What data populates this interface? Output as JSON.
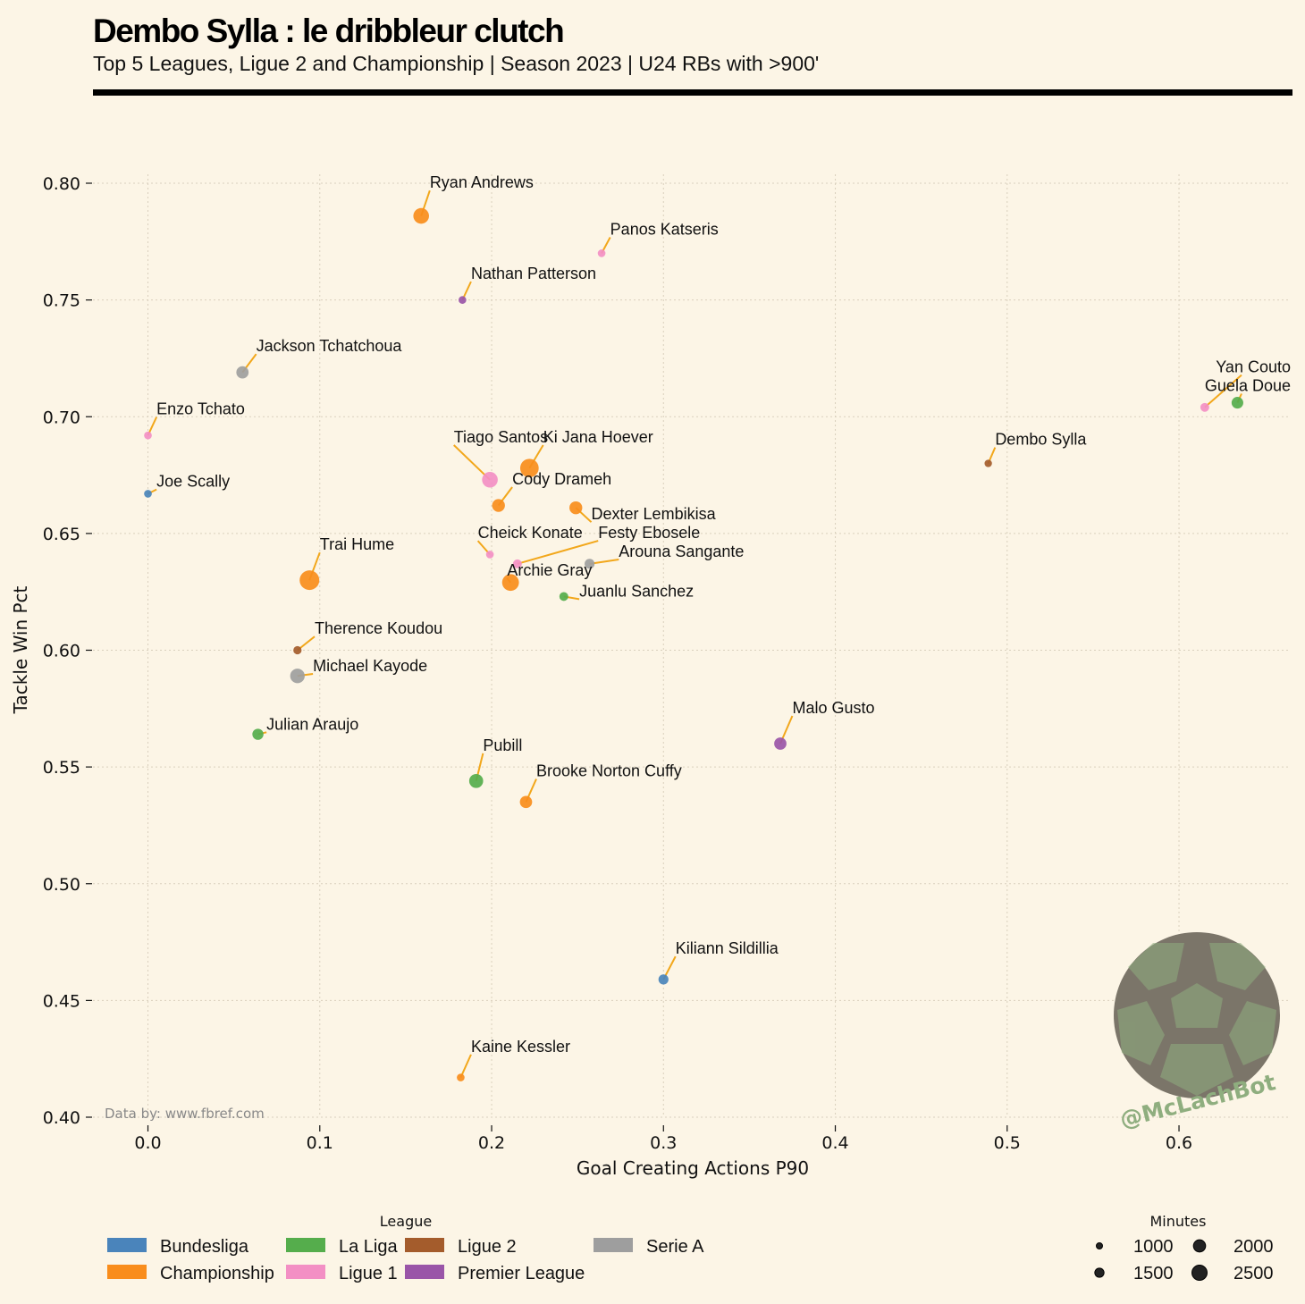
{
  "header": {
    "title": "Dembo Sylla : le dribbleur clutch",
    "subtitle": "Top 5 Leagues, Ligue 2 and Championship | Season 2023 | U24 RBs with >900'"
  },
  "footer": {
    "credit": "Data by: www.fbref.com",
    "brand": "@McLachBot"
  },
  "colors": {
    "background": "#fcf5e6",
    "leader_line": "#f2a71b",
    "Bundesliga": "#4a84bb",
    "Championship": "#f98d1c",
    "La Liga": "#55ad4c",
    "Ligue 1": "#f38fc4",
    "Ligue 2": "#a45c2c",
    "Premier League": "#9a55a8",
    "Serie A": "#9e9e9e"
  },
  "chart_data": {
    "type": "scatter",
    "xlabel": "Goal Creating Actions P90",
    "ylabel": "Tackle Win Pct",
    "xlim": [
      -0.032,
      0.665
    ],
    "ylim": [
      0.4,
      0.8
    ],
    "xticks": [
      0.0,
      0.1,
      0.2,
      0.3,
      0.4,
      0.5,
      0.6
    ],
    "xtick_labels": [
      "0.0",
      "0.1",
      "0.2",
      "0.3",
      "0.4",
      "0.5",
      "0.6"
    ],
    "yticks": [
      0.4,
      0.45,
      0.5,
      0.55,
      0.6,
      0.65,
      0.7,
      0.75,
      0.8
    ],
    "ytick_labels": [
      "0.40",
      "0.45",
      "0.50",
      "0.55",
      "0.60",
      "0.65",
      "0.70",
      "0.75",
      "0.80"
    ],
    "grid": true,
    "points": [
      {
        "name": "Ryan Andrews",
        "x": 0.159,
        "y": 0.786,
        "league": "Championship",
        "minutes": 2400,
        "lx": 0.164,
        "ly": 0.798,
        "anchor": "start"
      },
      {
        "name": "Panos Katseris",
        "x": 0.264,
        "y": 0.77,
        "league": "Ligue 1",
        "minutes": 1000,
        "lx": 0.269,
        "ly": 0.778,
        "anchor": "start"
      },
      {
        "name": "Nathan Patterson",
        "x": 0.183,
        "y": 0.75,
        "league": "Premier League",
        "minutes": 1000,
        "lx": 0.188,
        "ly": 0.759,
        "anchor": "start"
      },
      {
        "name": "Jackson Tchatchoua",
        "x": 0.055,
        "y": 0.719,
        "league": "Serie A",
        "minutes": 1800,
        "lx": 0.063,
        "ly": 0.728,
        "anchor": "start"
      },
      {
        "name": "Yan Couto",
        "x": 0.615,
        "y": 0.704,
        "league": "Ligue 1",
        "minutes": 1200,
        "lx": 0.665,
        "ly": 0.719,
        "anchor": "end"
      },
      {
        "name": "Guela Doue",
        "x": 0.634,
        "y": 0.706,
        "league": "La Liga",
        "minutes": 1700,
        "lx": 0.665,
        "ly": 0.711,
        "anchor": "end"
      },
      {
        "name": "Enzo Tchato",
        "x": 0.0,
        "y": 0.692,
        "league": "Ligue 1",
        "minutes": 1000,
        "lx": 0.005,
        "ly": 0.701,
        "anchor": "start"
      },
      {
        "name": "Dembo Sylla",
        "x": 0.489,
        "y": 0.68,
        "league": "Ligue 2",
        "minutes": 950,
        "lx": 0.493,
        "ly": 0.688,
        "anchor": "start"
      },
      {
        "name": "Tiago Santos",
        "x": 0.199,
        "y": 0.673,
        "league": "Ligue 1",
        "minutes": 2400,
        "lx": 0.178,
        "ly": 0.689,
        "anchor": "start"
      },
      {
        "name": "Ki Jana Hoever",
        "x": 0.222,
        "y": 0.678,
        "league": "Championship",
        "minutes": 2900,
        "lx": 0.23,
        "ly": 0.689,
        "anchor": "start"
      },
      {
        "name": "Joe Scally",
        "x": 0.0,
        "y": 0.667,
        "league": "Bundesliga",
        "minutes": 1000,
        "lx": 0.005,
        "ly": 0.67,
        "anchor": "start"
      },
      {
        "name": "Cody Drameh",
        "x": 0.204,
        "y": 0.662,
        "league": "Championship",
        "minutes": 1900,
        "lx": 0.212,
        "ly": 0.671,
        "anchor": "start"
      },
      {
        "name": "Dexter Lembikisa",
        "x": 0.249,
        "y": 0.661,
        "league": "Championship",
        "minutes": 1900,
        "lx": 0.258,
        "ly": 0.656,
        "anchor": "start"
      },
      {
        "name": "Cheick Konate",
        "x": 0.199,
        "y": 0.641,
        "league": "Ligue 1",
        "minutes": 1000,
        "lx": 0.192,
        "ly": 0.648,
        "anchor": "start"
      },
      {
        "name": "Festy Ebosele",
        "x": 0.215,
        "y": 0.637,
        "league": "Ligue 1",
        "minutes": 1200,
        "lx": 0.262,
        "ly": 0.648,
        "anchor": "start"
      },
      {
        "name": "Arouna Sangante",
        "x": 0.257,
        "y": 0.637,
        "league": "Serie A",
        "minutes": 1400,
        "lx": 0.274,
        "ly": 0.64,
        "anchor": "start"
      },
      {
        "name": "Archie Gray",
        "x": 0.211,
        "y": 0.629,
        "league": "Championship",
        "minutes": 2600,
        "lx": 0.209,
        "ly": 0.632,
        "anchor": "start"
      },
      {
        "name": "Trai Hume",
        "x": 0.094,
        "y": 0.63,
        "league": "Championship",
        "minutes": 3100,
        "lx": 0.1,
        "ly": 0.643,
        "anchor": "start"
      },
      {
        "name": "Juanlu Sanchez",
        "x": 0.242,
        "y": 0.623,
        "league": "La Liga",
        "minutes": 1200,
        "lx": 0.251,
        "ly": 0.623,
        "anchor": "start"
      },
      {
        "name": "Therence Koudou",
        "x": 0.087,
        "y": 0.6,
        "league": "Ligue 2",
        "minutes": 1100,
        "lx": 0.097,
        "ly": 0.607,
        "anchor": "start"
      },
      {
        "name": "Michael Kayode",
        "x": 0.087,
        "y": 0.589,
        "league": "Serie A",
        "minutes": 2200,
        "lx": 0.096,
        "ly": 0.591,
        "anchor": "start"
      },
      {
        "name": "Julian Araujo",
        "x": 0.064,
        "y": 0.564,
        "league": "La Liga",
        "minutes": 1600,
        "lx": 0.069,
        "ly": 0.566,
        "anchor": "start"
      },
      {
        "name": "Malo Gusto",
        "x": 0.368,
        "y": 0.56,
        "league": "Premier League",
        "minutes": 1800,
        "lx": 0.375,
        "ly": 0.573,
        "anchor": "start"
      },
      {
        "name": "Pubill",
        "x": 0.191,
        "y": 0.544,
        "league": "La Liga",
        "minutes": 2100,
        "lx": 0.195,
        "ly": 0.557,
        "anchor": "start"
      },
      {
        "name": "Brooke Norton Cuffy",
        "x": 0.22,
        "y": 0.535,
        "league": "Championship",
        "minutes": 1800,
        "lx": 0.226,
        "ly": 0.546,
        "anchor": "start"
      },
      {
        "name": "Kiliann Sildillia",
        "x": 0.3,
        "y": 0.459,
        "league": "Bundesliga",
        "minutes": 1400,
        "lx": 0.307,
        "ly": 0.47,
        "anchor": "start"
      },
      {
        "name": "Kaine Kessler",
        "x": 0.182,
        "y": 0.417,
        "league": "Championship",
        "minutes": 1000,
        "lx": 0.188,
        "ly": 0.428,
        "anchor": "start"
      }
    ],
    "legend": {
      "league_title": "League",
      "leagues": [
        "Bundesliga",
        "Championship",
        "La Liga",
        "Ligue 1",
        "Ligue 2",
        "Premier League",
        "Serie A"
      ],
      "size_title": "Minutes",
      "sizes": [
        1000,
        1500,
        2000,
        2500
      ],
      "size_labels": [
        "1000",
        "1500",
        "2000",
        "2500"
      ]
    }
  }
}
